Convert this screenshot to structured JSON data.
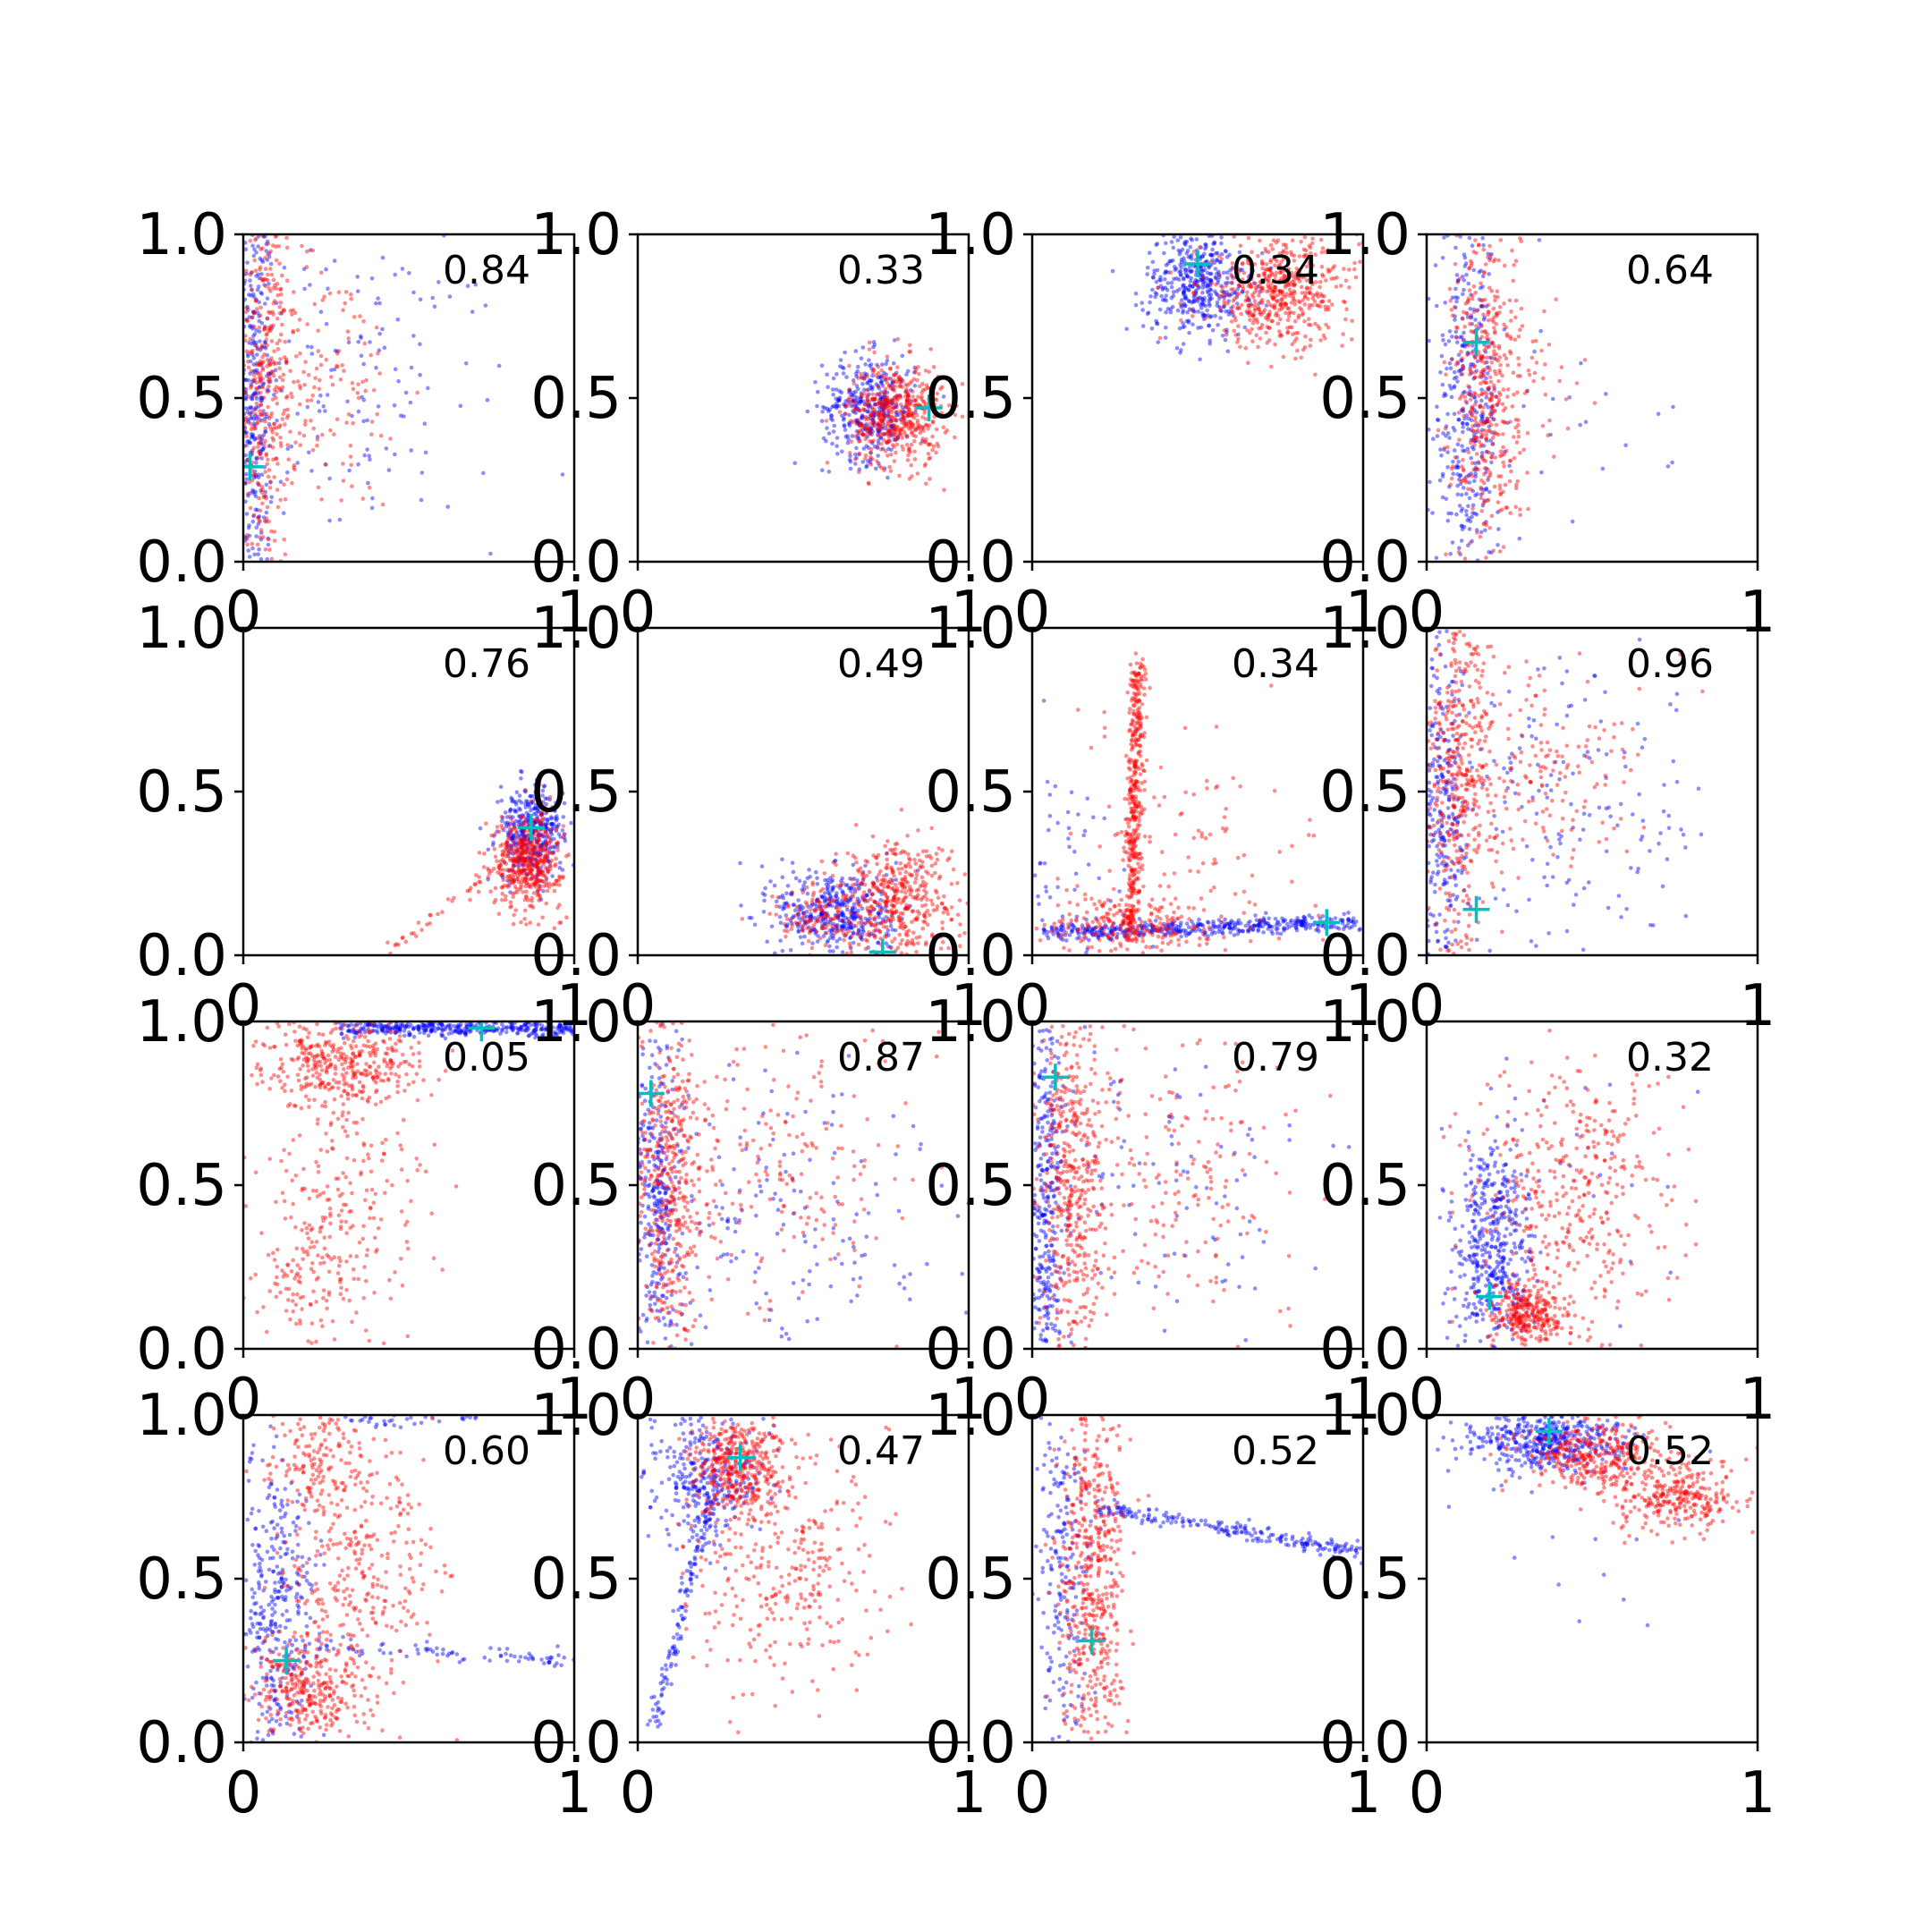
{
  "colors": {
    "series_a": "#0000ff",
    "series_b": "#ff0000",
    "marker": "#00bfbf",
    "axis": "#000000"
  },
  "chart_data": {
    "type": "scatter",
    "layout": "4x4 grid of scatter subplots",
    "xlim": [
      0,
      1
    ],
    "ylim": [
      0,
      1
    ],
    "xticks": [
      "0",
      "1"
    ],
    "yticks": [
      "0.0",
      "0.5",
      "1.0"
    ],
    "grid": false,
    "legend": "none",
    "series_colors": [
      "blue",
      "red"
    ],
    "marker_style": "cyan plus",
    "panels": [
      {
        "label": "0.84",
        "marker": [
          0.02,
          0.29
        ],
        "blue": [
          {
            "type": "band",
            "xc": 0.03,
            "yc": 0.5,
            "sx": 0.03,
            "sy": 0.35,
            "n": 380
          },
          {
            "type": "cloud",
            "xc": 0.35,
            "yc": 0.55,
            "sx": 0.22,
            "sy": 0.25,
            "n": 150
          }
        ],
        "red": [
          {
            "type": "band",
            "xc": 0.06,
            "yc": 0.55,
            "sx": 0.05,
            "sy": 0.3,
            "n": 430
          },
          {
            "type": "cloud",
            "xc": 0.25,
            "yc": 0.55,
            "sx": 0.12,
            "sy": 0.2,
            "n": 120
          }
        ]
      },
      {
        "label": "0.33",
        "marker": [
          0.88,
          0.47
        ],
        "blue": [
          {
            "type": "cloud",
            "xc": 0.7,
            "yc": 0.47,
            "sx": 0.07,
            "sy": 0.08,
            "n": 380
          }
        ],
        "red": [
          {
            "type": "cloud",
            "xc": 0.78,
            "yc": 0.45,
            "sx": 0.07,
            "sy": 0.08,
            "n": 500
          }
        ]
      },
      {
        "label": "0.34",
        "marker": [
          0.5,
          0.91
        ],
        "blue": [
          {
            "type": "cloud",
            "xc": 0.5,
            "yc": 0.85,
            "sx": 0.08,
            "sy": 0.08,
            "n": 420
          }
        ],
        "red": [
          {
            "type": "cloud",
            "xc": 0.75,
            "yc": 0.82,
            "sx": 0.12,
            "sy": 0.08,
            "n": 520
          }
        ]
      },
      {
        "label": "0.64",
        "marker": [
          0.15,
          0.67
        ],
        "blue": [
          {
            "type": "band",
            "xc": 0.12,
            "yc": 0.45,
            "sx": 0.05,
            "sy": 0.3,
            "n": 400
          },
          {
            "type": "cloud",
            "xc": 0.4,
            "yc": 0.45,
            "sx": 0.2,
            "sy": 0.2,
            "n": 30
          }
        ],
        "red": [
          {
            "type": "band",
            "xc": 0.18,
            "yc": 0.5,
            "sx": 0.05,
            "sy": 0.3,
            "n": 450
          },
          {
            "type": "cloud",
            "xc": 0.3,
            "yc": 0.55,
            "sx": 0.1,
            "sy": 0.12,
            "n": 60
          }
        ]
      },
      {
        "label": "0.76",
        "marker": [
          0.87,
          0.39
        ],
        "blue": [
          {
            "type": "cloud",
            "xc": 0.87,
            "yc": 0.37,
            "sx": 0.05,
            "sy": 0.07,
            "n": 380
          }
        ],
        "red": [
          {
            "type": "cloud",
            "xc": 0.86,
            "yc": 0.29,
            "sx": 0.05,
            "sy": 0.07,
            "n": 480
          },
          {
            "type": "line",
            "x0": 0.45,
            "y0": 0.02,
            "x1": 0.8,
            "y1": 0.3,
            "n": 40
          }
        ]
      },
      {
        "label": "0.49",
        "marker": [
          0.74,
          0.01
        ],
        "blue": [
          {
            "type": "cloud",
            "xc": 0.6,
            "yc": 0.13,
            "sx": 0.09,
            "sy": 0.07,
            "n": 420
          }
        ],
        "red": [
          {
            "type": "cloud",
            "xc": 0.78,
            "yc": 0.18,
            "sx": 0.09,
            "sy": 0.09,
            "n": 430
          },
          {
            "type": "cloud",
            "xc": 0.55,
            "yc": 0.12,
            "sx": 0.08,
            "sy": 0.05,
            "n": 120
          }
        ]
      },
      {
        "label": "0.34",
        "marker": [
          0.89,
          0.1
        ],
        "blue": [
          {
            "type": "line",
            "x0": 0.05,
            "y0": 0.07,
            "x1": 0.98,
            "y1": 0.1,
            "n": 420
          },
          {
            "type": "cloud",
            "xc": 0.12,
            "yc": 0.2,
            "sx": 0.1,
            "sy": 0.2,
            "n": 60
          }
        ],
        "red": [
          {
            "type": "line",
            "x0": 0.3,
            "y0": 0.05,
            "x1": 0.32,
            "y1": 0.9,
            "n": 420
          },
          {
            "type": "cloud",
            "xc": 0.3,
            "yc": 0.1,
            "sx": 0.12,
            "sy": 0.05,
            "n": 200
          },
          {
            "type": "cloud",
            "xc": 0.45,
            "yc": 0.3,
            "sx": 0.2,
            "sy": 0.2,
            "n": 120
          }
        ]
      },
      {
        "label": "0.96",
        "marker": [
          0.15,
          0.14
        ],
        "blue": [
          {
            "type": "band",
            "xc": 0.05,
            "yc": 0.45,
            "sx": 0.04,
            "sy": 0.3,
            "n": 300
          },
          {
            "type": "cloud",
            "xc": 0.45,
            "yc": 0.45,
            "sx": 0.22,
            "sy": 0.22,
            "n": 160
          }
        ],
        "red": [
          {
            "type": "band",
            "xc": 0.1,
            "yc": 0.55,
            "sx": 0.05,
            "sy": 0.28,
            "n": 420
          },
          {
            "type": "cloud",
            "xc": 0.35,
            "yc": 0.55,
            "sx": 0.15,
            "sy": 0.15,
            "n": 160
          }
        ]
      },
      {
        "label": "0.05",
        "marker": [
          0.72,
          0.98
        ],
        "blue": [
          {
            "type": "line",
            "x0": 0.3,
            "y0": 0.98,
            "x1": 1.0,
            "y1": 0.98,
            "n": 380
          }
        ],
        "red": [
          {
            "type": "cloud",
            "xc": 0.3,
            "yc": 0.88,
            "sx": 0.12,
            "sy": 0.07,
            "n": 380
          },
          {
            "type": "cloud",
            "xc": 0.3,
            "yc": 0.45,
            "sx": 0.12,
            "sy": 0.22,
            "n": 220
          },
          {
            "type": "cloud",
            "xc": 0.2,
            "yc": 0.2,
            "sx": 0.08,
            "sy": 0.1,
            "n": 100
          }
        ]
      },
      {
        "label": "0.87",
        "marker": [
          0.04,
          0.78
        ],
        "blue": [
          {
            "type": "band",
            "xc": 0.06,
            "yc": 0.45,
            "sx": 0.04,
            "sy": 0.3,
            "n": 350
          },
          {
            "type": "cloud",
            "xc": 0.45,
            "yc": 0.4,
            "sx": 0.22,
            "sy": 0.22,
            "n": 160
          }
        ],
        "red": [
          {
            "type": "band",
            "xc": 0.1,
            "yc": 0.5,
            "sx": 0.05,
            "sy": 0.3,
            "n": 450
          },
          {
            "type": "cloud",
            "xc": 0.45,
            "yc": 0.55,
            "sx": 0.2,
            "sy": 0.22,
            "n": 200
          }
        ]
      },
      {
        "label": "0.79",
        "marker": [
          0.07,
          0.83
        ],
        "blue": [
          {
            "type": "band",
            "xc": 0.04,
            "yc": 0.45,
            "sx": 0.03,
            "sy": 0.3,
            "n": 350
          },
          {
            "type": "cloud",
            "xc": 0.4,
            "yc": 0.5,
            "sx": 0.22,
            "sy": 0.22,
            "n": 100
          }
        ],
        "red": [
          {
            "type": "band",
            "xc": 0.12,
            "yc": 0.5,
            "sx": 0.05,
            "sy": 0.3,
            "n": 450
          },
          {
            "type": "cloud",
            "xc": 0.4,
            "yc": 0.55,
            "sx": 0.22,
            "sy": 0.22,
            "n": 220
          }
        ]
      },
      {
        "label": "0.32",
        "marker": [
          0.19,
          0.16
        ],
        "blue": [
          {
            "type": "cloud",
            "xc": 0.2,
            "yc": 0.3,
            "sx": 0.06,
            "sy": 0.18,
            "n": 480
          },
          {
            "type": "cloud",
            "xc": 0.6,
            "yc": 0.45,
            "sx": 0.2,
            "sy": 0.2,
            "n": 20
          }
        ],
        "red": [
          {
            "type": "cloud",
            "xc": 0.3,
            "yc": 0.1,
            "sx": 0.06,
            "sy": 0.05,
            "n": 300
          },
          {
            "type": "cloud",
            "xc": 0.45,
            "yc": 0.45,
            "sx": 0.15,
            "sy": 0.22,
            "n": 400
          }
        ]
      },
      {
        "label": "0.60",
        "marker": [
          0.13,
          0.25
        ],
        "blue": [
          {
            "type": "band",
            "xc": 0.1,
            "yc": 0.4,
            "sx": 0.06,
            "sy": 0.25,
            "n": 350
          },
          {
            "type": "line",
            "x0": 0.2,
            "y0": 0.3,
            "x1": 1.0,
            "y1": 0.25,
            "n": 80
          },
          {
            "type": "line",
            "x0": 0.3,
            "y0": 0.99,
            "x1": 0.7,
            "y1": 0.99,
            "n": 40
          }
        ],
        "red": [
          {
            "type": "cloud",
            "xc": 0.2,
            "yc": 0.15,
            "sx": 0.08,
            "sy": 0.08,
            "n": 300
          },
          {
            "type": "cloud",
            "xc": 0.35,
            "yc": 0.55,
            "sx": 0.12,
            "sy": 0.2,
            "n": 350
          },
          {
            "type": "cloud",
            "xc": 0.2,
            "yc": 0.88,
            "sx": 0.07,
            "sy": 0.07,
            "n": 120
          }
        ]
      },
      {
        "label": "0.47",
        "marker": [
          0.31,
          0.87
        ],
        "blue": [
          {
            "type": "cloud",
            "xc": 0.2,
            "yc": 0.8,
            "sx": 0.08,
            "sy": 0.1,
            "n": 320
          },
          {
            "type": "line",
            "x0": 0.22,
            "y0": 0.75,
            "x1": 0.05,
            "y1": 0.05,
            "n": 120
          }
        ],
        "red": [
          {
            "type": "cloud",
            "xc": 0.3,
            "yc": 0.85,
            "sx": 0.07,
            "sy": 0.07,
            "n": 380
          },
          {
            "type": "cloud",
            "xc": 0.45,
            "yc": 0.55,
            "sx": 0.15,
            "sy": 0.2,
            "n": 320
          }
        ]
      },
      {
        "label": "0.52",
        "marker": [
          0.18,
          0.31
        ],
        "blue": [
          {
            "type": "band",
            "xc": 0.1,
            "yc": 0.55,
            "sx": 0.05,
            "sy": 0.3,
            "n": 220
          },
          {
            "type": "line",
            "x0": 0.2,
            "y0": 0.72,
            "x1": 1.0,
            "y1": 0.58,
            "n": 220
          }
        ],
        "red": [
          {
            "type": "band",
            "xc": 0.18,
            "yc": 0.5,
            "sx": 0.05,
            "sy": 0.3,
            "n": 550
          }
        ]
      },
      {
        "label": "0.52",
        "marker": [
          0.37,
          0.95
        ],
        "blue": [
          {
            "type": "cloud",
            "xc": 0.35,
            "yc": 0.92,
            "sx": 0.12,
            "sy": 0.05,
            "n": 450
          },
          {
            "type": "cloud",
            "xc": 0.4,
            "yc": 0.6,
            "sx": 0.25,
            "sy": 0.25,
            "n": 15
          }
        ],
        "red": [
          {
            "type": "cloud",
            "xc": 0.5,
            "yc": 0.88,
            "sx": 0.1,
            "sy": 0.05,
            "n": 320
          },
          {
            "type": "cloud",
            "xc": 0.75,
            "yc": 0.75,
            "sx": 0.1,
            "sy": 0.06,
            "n": 300
          }
        ]
      }
    ]
  }
}
